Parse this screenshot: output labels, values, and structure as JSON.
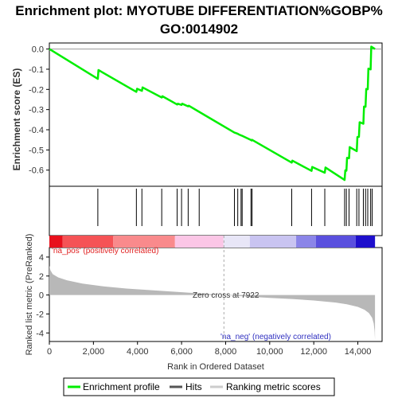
{
  "chart_data": {
    "type": "line",
    "title_line1": "Enrichment plot: MYOTUBE DIFFERENTIATION%GOBP%",
    "title_line2": "GO:0014902",
    "es_panel": {
      "ylabel": "Enrichment score (ES)",
      "ylim": [
        -0.68,
        0.03
      ],
      "yticks": [
        0.0,
        -0.1,
        -0.2,
        -0.3,
        -0.4,
        -0.5,
        -0.6
      ],
      "ytick_labels": [
        "0.0",
        "-0.1",
        "-0.2",
        "-0.3",
        "-0.4",
        "-0.5",
        "-0.6"
      ],
      "line_color": "#00ee00",
      "points": [
        [
          0,
          0.0
        ],
        [
          2200,
          -0.148
        ],
        [
          2230,
          -0.104
        ],
        [
          3950,
          -0.212
        ],
        [
          3980,
          -0.197
        ],
        [
          4200,
          -0.207
        ],
        [
          4230,
          -0.19
        ],
        [
          5100,
          -0.24
        ],
        [
          5130,
          -0.234
        ],
        [
          5800,
          -0.275
        ],
        [
          5830,
          -0.271
        ],
        [
          6000,
          -0.277
        ],
        [
          6030,
          -0.271
        ],
        [
          6300,
          -0.284
        ],
        [
          6330,
          -0.281
        ],
        [
          6800,
          -0.311
        ],
        [
          8400,
          -0.414
        ],
        [
          8430,
          -0.415
        ],
        [
          8550,
          -0.42
        ],
        [
          8580,
          -0.422
        ],
        [
          8700,
          -0.428
        ],
        [
          8730,
          -0.429
        ],
        [
          9150,
          -0.451
        ],
        [
          9180,
          -0.453
        ],
        [
          9200,
          -0.45
        ],
        [
          11000,
          -0.563
        ],
        [
          11030,
          -0.553
        ],
        [
          11900,
          -0.604
        ],
        [
          11930,
          -0.584
        ],
        [
          12500,
          -0.613
        ],
        [
          12530,
          -0.587
        ],
        [
          13400,
          -0.649
        ],
        [
          13430,
          -0.601
        ],
        [
          13480,
          -0.603
        ],
        [
          13510,
          -0.539
        ],
        [
          13600,
          -0.541
        ],
        [
          13630,
          -0.486
        ],
        [
          13950,
          -0.506
        ],
        [
          13980,
          -0.436
        ],
        [
          14050,
          -0.435
        ],
        [
          14080,
          -0.363
        ],
        [
          14250,
          -0.37
        ],
        [
          14280,
          -0.285
        ],
        [
          14350,
          -0.286
        ],
        [
          14380,
          -0.198
        ],
        [
          14450,
          -0.199
        ],
        [
          14480,
          -0.097
        ],
        [
          14580,
          -0.101
        ],
        [
          14610,
          0.012
        ],
        [
          14780,
          0.0
        ]
      ]
    },
    "hits": [
      2200,
      3950,
      4200,
      5100,
      5800,
      6000,
      6300,
      6800,
      8400,
      8550,
      8700,
      8750,
      9150,
      9200,
      11000,
      11900,
      12500,
      13400,
      13480,
      13600,
      13950,
      14050,
      14250,
      14350,
      14450,
      14580,
      14650
    ],
    "heatmap_segments": [
      {
        "x": [
          0,
          600
        ],
        "color": "#e8101c"
      },
      {
        "x": [
          600,
          2900
        ],
        "color": "#f55356"
      },
      {
        "x": [
          2900,
          5700
        ],
        "color": "#f98a8c"
      },
      {
        "x": [
          5700,
          7900
        ],
        "color": "#fbc6e6"
      },
      {
        "x": [
          7900,
          9100
        ],
        "color": "#e8e6f7"
      },
      {
        "x": [
          9100,
          11200
        ],
        "color": "#c9c4f1"
      },
      {
        "x": [
          11200,
          12100
        ],
        "color": "#8b85e8"
      },
      {
        "x": [
          12100,
          13900
        ],
        "color": "#5a50de"
      },
      {
        "x": [
          13900,
          14780
        ],
        "color": "#1e0fcc"
      }
    ],
    "heatmap_labels": {
      "pos": "'na_pos' (positively correlated)",
      "neg": "'na_neg' (negatively correlated)"
    },
    "metric_panel": {
      "ylabel": "Ranked list metric (PreRanked)",
      "ylim": [
        -4.9,
        5.0
      ],
      "yticks": [
        4,
        2,
        0,
        -2,
        -4
      ],
      "ytick_labels": [
        "4",
        "2",
        "0",
        "-2",
        "-4"
      ],
      "zero_cross_label": "Zero cross at 7922",
      "zero_cross_x": 7922,
      "fill_color": "#b8b8b8",
      "profile": [
        [
          0,
          3.1
        ],
        [
          50,
          2.6
        ],
        [
          150,
          2.2
        ],
        [
          400,
          1.85
        ],
        [
          800,
          1.55
        ],
        [
          1500,
          1.2
        ],
        [
          2500,
          0.9
        ],
        [
          3500,
          0.68
        ],
        [
          5000,
          0.45
        ],
        [
          6500,
          0.22
        ],
        [
          7922,
          0.0
        ],
        [
          9000,
          -0.17
        ],
        [
          10000,
          -0.3
        ],
        [
          11000,
          -0.42
        ],
        [
          12000,
          -0.58
        ],
        [
          13000,
          -0.8
        ],
        [
          13500,
          -0.98
        ],
        [
          14000,
          -1.25
        ],
        [
          14300,
          -1.55
        ],
        [
          14500,
          -1.9
        ],
        [
          14650,
          -2.4
        ],
        [
          14720,
          -3.0
        ],
        [
          14760,
          -3.8
        ],
        [
          14780,
          -4.75
        ]
      ]
    },
    "xaxis": {
      "xlabel": "Rank in Ordered Dataset",
      "xlim": [
        0,
        15100
      ],
      "xticks": [
        0,
        2000,
        4000,
        6000,
        8000,
        10000,
        12000,
        14000
      ],
      "xtick_labels": [
        "0",
        "2,000",
        "4,000",
        "6,000",
        "8,000",
        "10,000",
        "12,000",
        "14,000"
      ]
    },
    "legend": {
      "items": [
        {
          "label": "Enrichment profile",
          "color": "#00ee00"
        },
        {
          "label": "Hits",
          "color": "#555555"
        },
        {
          "label": "Ranking metric scores",
          "color": "#cccccc"
        }
      ],
      "placement": "bottom"
    }
  }
}
